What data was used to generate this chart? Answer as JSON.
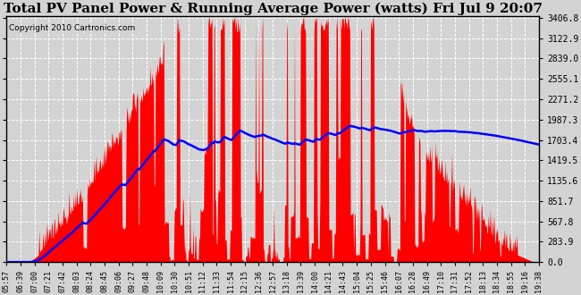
{
  "title": "Total PV Panel Power & Running Average Power (watts) Fri Jul 9 20:07",
  "copyright": "Copyright 2010 Cartronics.com",
  "yticks": [
    0.0,
    283.9,
    567.8,
    851.7,
    1135.6,
    1419.5,
    1703.4,
    1987.3,
    2271.2,
    2555.1,
    2839.0,
    3122.9,
    3406.8
  ],
  "xtick_labels": [
    "05:57",
    "06:39",
    "07:00",
    "07:21",
    "07:42",
    "08:03",
    "08:24",
    "08:45",
    "09:06",
    "09:27",
    "09:48",
    "10:09",
    "10:30",
    "10:51",
    "11:12",
    "11:33",
    "11:54",
    "12:15",
    "12:36",
    "12:57",
    "13:18",
    "13:39",
    "14:00",
    "14:21",
    "14:43",
    "15:04",
    "15:25",
    "15:46",
    "16:07",
    "16:28",
    "16:49",
    "17:10",
    "17:31",
    "17:52",
    "18:13",
    "18:34",
    "18:55",
    "19:16",
    "19:38"
  ],
  "bg_color": "#d3d3d3",
  "bar_color": "#ff0000",
  "line_color": "#0000ff",
  "grid_color": "#ffffff",
  "title_fontsize": 11,
  "ymax": 3406.8,
  "ymin": 0.0
}
